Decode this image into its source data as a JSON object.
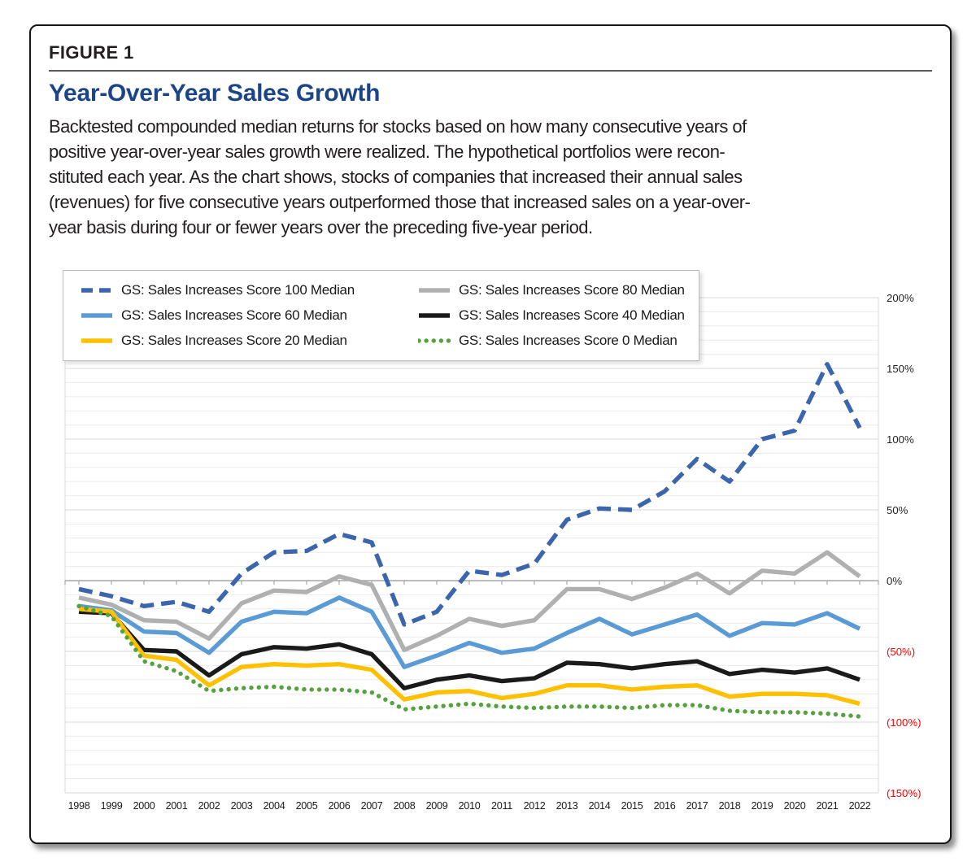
{
  "figure_label": "FIGURE 1",
  "title": "Year-Over-Year Sales Growth",
  "description_lines": [
    "Backtested compounded median returns for stocks based on how many consecutive years of",
    "positive year-over-year sales growth were realized. The hypothetical portfolios were recon-",
    "stituted each year. As the chart shows, stocks of companies that increased their annual sales",
    "(revenues) for five consecutive years outperformed those that increased sales on a year-over-",
    "year basis during four or fewer years over the preceding five-year period."
  ],
  "colors": {
    "title": "#1c4587",
    "figure_label": "#231f20",
    "body_text": "#231f20",
    "positive_tick_label": "#1f1f1f",
    "negative_tick_label": "#ff0000",
    "grid_minor": "#ececec",
    "grid_major": "#d9d9d9",
    "zero_axis": "#a6a6a6",
    "card_border": "#151515",
    "legend_border": "#bfbfbf"
  },
  "chart_data": {
    "type": "line",
    "title": "Year-Over-Year Sales Growth",
    "x": [
      1998,
      1999,
      2000,
      2001,
      2002,
      2003,
      2004,
      2005,
      2006,
      2007,
      2008,
      2009,
      2010,
      2011,
      2012,
      2013,
      2014,
      2015,
      2016,
      2017,
      2018,
      2019,
      2020,
      2021,
      2022
    ],
    "ylim": [
      -150,
      200
    ],
    "y_unit": "%",
    "grid_minor_step": 10,
    "grid_major_step": 50,
    "legend_position": "top-left",
    "y_ticks": [
      {
        "label": "200%",
        "value": 200,
        "negative": false
      },
      {
        "label": "150%",
        "value": 150,
        "negative": false
      },
      {
        "label": "100%",
        "value": 100,
        "negative": false
      },
      {
        "label": "50%",
        "value": 50,
        "negative": false
      },
      {
        "label": "0%",
        "value": 0,
        "negative": false
      },
      {
        "label": "(50%)",
        "value": -50,
        "negative": true
      },
      {
        "label": "(100%)",
        "value": -100,
        "negative": true
      },
      {
        "label": "(150%)",
        "value": -150,
        "negative": true
      }
    ],
    "series": [
      {
        "name": "GS: Sales Increases Score 100 Median",
        "score": 100,
        "color": "#3b66ad",
        "style": "dashed",
        "values": [
          -6,
          -11,
          -18,
          -15,
          -22,
          5,
          20,
          21,
          33,
          27,
          -31,
          -22,
          7,
          4,
          12,
          43,
          51,
          50,
          63,
          86,
          70,
          100,
          106,
          153,
          108
        ]
      },
      {
        "name": "GS: Sales Increases Score 80 Median",
        "score": 80,
        "color": "#b0b0b0",
        "style": "solid",
        "values": [
          -12,
          -17,
          -28,
          -29,
          -41,
          -16,
          -7,
          -8,
          3,
          -3,
          -49,
          -39,
          -27,
          -32,
          -28,
          -6,
          -6,
          -13,
          -5,
          5,
          -9,
          7,
          5,
          20,
          3
        ]
      },
      {
        "name": "GS: Sales Increases Score 60 Median",
        "score": 60,
        "color": "#5b9bd5",
        "style": "solid",
        "values": [
          -18,
          -21,
          -36,
          -37,
          -51,
          -29,
          -22,
          -23,
          -12,
          -22,
          -61,
          -53,
          -44,
          -51,
          -48,
          -37,
          -27,
          -38,
          -31,
          -24,
          -39,
          -30,
          -31,
          -23,
          -34
        ]
      },
      {
        "name": "GS: Sales Increases Score 40 Median",
        "score": 40,
        "color": "#1a1a1a",
        "style": "solid",
        "values": [
          -22,
          -23,
          -49,
          -50,
          -67,
          -52,
          -47,
          -48,
          -45,
          -52,
          -76,
          -70,
          -67,
          -71,
          -69,
          -58,
          -59,
          -62,
          -59,
          -57,
          -66,
          -63,
          -65,
          -62,
          -70
        ]
      },
      {
        "name": "GS: Sales Increases Score 20 Median",
        "score": 20,
        "color": "#ffc000",
        "style": "solid",
        "values": [
          -20,
          -22,
          -53,
          -56,
          -74,
          -61,
          -59,
          -60,
          -59,
          -63,
          -84,
          -79,
          -78,
          -83,
          -80,
          -74,
          -74,
          -77,
          -75,
          -74,
          -82,
          -80,
          -80,
          -81,
          -87
        ]
      },
      {
        "name": "GS: Sales Increases Score 0 Median",
        "score": 0,
        "color": "#56a23f",
        "style": "dotted",
        "values": [
          -18,
          -25,
          -57,
          -64,
          -78,
          -76,
          -75,
          -77,
          -77,
          -79,
          -91,
          -89,
          -87,
          -89,
          -90,
          -89,
          -89,
          -90,
          -88,
          -88,
          -92,
          -93,
          -93,
          -94,
          -96
        ]
      }
    ]
  }
}
